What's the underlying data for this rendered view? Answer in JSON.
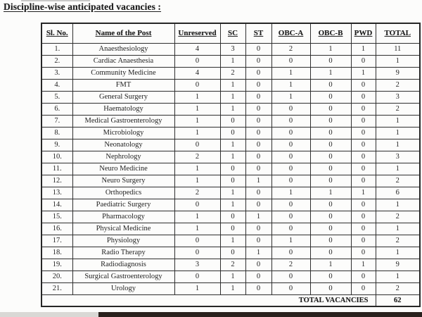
{
  "title": "Discipline-wise anticipated vacancies :",
  "colors": {
    "table_border": "#2e2e2e",
    "bottom_bar_dark": "#29211d",
    "bottom_bar_light": "#d9d8d5",
    "page_background": "#fcfcfb"
  },
  "table": {
    "headers": [
      "Sl. No.",
      "Name of the Post",
      "Unreserved",
      "SC",
      "ST",
      "OBC-A",
      "OBC-B",
      "PWD",
      "TOTAL"
    ],
    "rows": [
      {
        "sl": "1.",
        "post": "Anaesthesiology",
        "unreserved": "4",
        "sc": "3",
        "st": "0",
        "obc_a": "2",
        "obc_b": "1",
        "pwd": "1",
        "total": "11"
      },
      {
        "sl": "2.",
        "post": "Cardiac Anaesthesia",
        "unreserved": "0",
        "sc": "1",
        "st": "0",
        "obc_a": "0",
        "obc_b": "0",
        "pwd": "0",
        "total": "1"
      },
      {
        "sl": "3.",
        "post": "Community Medicine",
        "unreserved": "4",
        "sc": "2",
        "st": "0",
        "obc_a": "1",
        "obc_b": "1",
        "pwd": "1",
        "total": "9"
      },
      {
        "sl": "4.",
        "post": "FMT",
        "unreserved": "0",
        "sc": "1",
        "st": "0",
        "obc_a": "1",
        "obc_b": "0",
        "pwd": "0",
        "total": "2"
      },
      {
        "sl": "5.",
        "post": "General Surgery",
        "unreserved": "1",
        "sc": "1",
        "st": "0",
        "obc_a": "1",
        "obc_b": "0",
        "pwd": "0",
        "total": "3"
      },
      {
        "sl": "6.",
        "post": "Haematology",
        "unreserved": "1",
        "sc": "1",
        "st": "0",
        "obc_a": "0",
        "obc_b": "0",
        "pwd": "0",
        "total": "2"
      },
      {
        "sl": "7.",
        "post": "Medical Gastroenterology",
        "unreserved": "1",
        "sc": "0",
        "st": "0",
        "obc_a": "0",
        "obc_b": "0",
        "pwd": "0",
        "total": "1"
      },
      {
        "sl": "8.",
        "post": "Microbiology",
        "unreserved": "1",
        "sc": "0",
        "st": "0",
        "obc_a": "0",
        "obc_b": "0",
        "pwd": "0",
        "total": "1"
      },
      {
        "sl": "9.",
        "post": "Neonatology",
        "unreserved": "0",
        "sc": "1",
        "st": "0",
        "obc_a": "0",
        "obc_b": "0",
        "pwd": "0",
        "total": "1"
      },
      {
        "sl": "10.",
        "post": "Nephrology",
        "unreserved": "2",
        "sc": "1",
        "st": "0",
        "obc_a": "0",
        "obc_b": "0",
        "pwd": "0",
        "total": "3"
      },
      {
        "sl": "11.",
        "post": "Neuro Medicine",
        "unreserved": "1",
        "sc": "0",
        "st": "0",
        "obc_a": "0",
        "obc_b": "0",
        "pwd": "0",
        "total": "1"
      },
      {
        "sl": "12.",
        "post": "Neuro Surgery",
        "unreserved": "1",
        "sc": "0",
        "st": "1",
        "obc_a": "0",
        "obc_b": "0",
        "pwd": "0",
        "total": "2"
      },
      {
        "sl": "13.",
        "post": "Orthopedics",
        "unreserved": "2",
        "sc": "1",
        "st": "0",
        "obc_a": "1",
        "obc_b": "1",
        "pwd": "1",
        "total": "6"
      },
      {
        "sl": "14.",
        "post": "Paediatric Surgery",
        "unreserved": "0",
        "sc": "1",
        "st": "0",
        "obc_a": "0",
        "obc_b": "0",
        "pwd": "0",
        "total": "1"
      },
      {
        "sl": "15.",
        "post": "Pharmacology",
        "unreserved": "1",
        "sc": "0",
        "st": "1",
        "obc_a": "0",
        "obc_b": "0",
        "pwd": "0",
        "total": "2"
      },
      {
        "sl": "16.",
        "post": "Physical Medicine",
        "unreserved": "1",
        "sc": "0",
        "st": "0",
        "obc_a": "0",
        "obc_b": "0",
        "pwd": "0",
        "total": "1"
      },
      {
        "sl": "17.",
        "post": "Physiology",
        "unreserved": "0",
        "sc": "1",
        "st": "0",
        "obc_a": "1",
        "obc_b": "0",
        "pwd": "0",
        "total": "2"
      },
      {
        "sl": "18.",
        "post": "Radio Therapy",
        "unreserved": "0",
        "sc": "0",
        "st": "1",
        "obc_a": "0",
        "obc_b": "0",
        "pwd": "0",
        "total": "1"
      },
      {
        "sl": "19.",
        "post": "Radiodiagnosis",
        "unreserved": "3",
        "sc": "2",
        "st": "0",
        "obc_a": "2",
        "obc_b": "1",
        "pwd": "1",
        "total": "9"
      },
      {
        "sl": "20.",
        "post": "Surgical Gastroenterology",
        "unreserved": "0",
        "sc": "1",
        "st": "0",
        "obc_a": "0",
        "obc_b": "0",
        "pwd": "0",
        "total": "1"
      },
      {
        "sl": "21.",
        "post": "Urology",
        "unreserved": "1",
        "sc": "1",
        "st": "0",
        "obc_a": "0",
        "obc_b": "0",
        "pwd": "0",
        "total": "2"
      }
    ],
    "footer": {
      "label": "TOTAL VACANCIES",
      "total": "62"
    }
  }
}
